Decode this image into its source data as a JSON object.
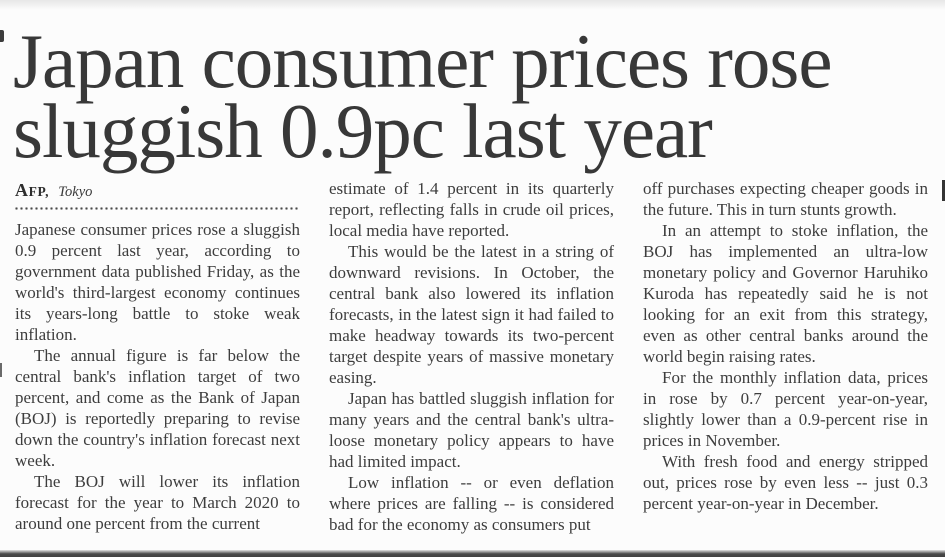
{
  "headline": {
    "line1": "Japan consumer prices rose",
    "line2": "sluggish 0.9pc last year"
  },
  "byline": {
    "agency": "AFP,",
    "location": "Tokyo"
  },
  "article": {
    "columns": [
      {
        "paragraphs": [
          {
            "indent": false,
            "text": "Japanese consumer prices rose a sluggish 0.9 percent last year, according to government data published Friday, as the world's third-largest economy continues its years-long battle to stoke weak inflation."
          },
          {
            "indent": true,
            "text": "The annual figure is far below the central bank's inflation target of two percent, and come as the Bank of Japan (BOJ) is reportedly preparing to revise down the country's inflation forecast next week."
          },
          {
            "indent": true,
            "text": "The BOJ will lower its inflation forecast for the year to March 2020 to around one percent from the current"
          }
        ]
      },
      {
        "paragraphs": [
          {
            "indent": false,
            "text": "estimate of 1.4 percent in its quarterly report, reflecting falls in crude oil prices, local media have reported."
          },
          {
            "indent": true,
            "text": "This would be the latest in a string of downward revisions. In October, the central bank also lowered its inflation forecasts, in the latest sign it had failed to make headway towards its two-percent target despite years of massive monetary easing."
          },
          {
            "indent": true,
            "text": "Japan has battled sluggish inflation for many years and the central bank's ultra-loose monetary policy appears to have had limited impact."
          },
          {
            "indent": true,
            "text": "Low inflation -- or even deflation where prices are falling -- is considered bad for the economy as consumers put"
          }
        ]
      },
      {
        "paragraphs": [
          {
            "indent": false,
            "text": "off purchases expecting cheaper goods in the future. This in turn stunts growth."
          },
          {
            "indent": true,
            "text": "In an attempt to stoke inflation, the BOJ has implemented an ultra-low monetary policy and Governor Haruhiko Kuroda has repeatedly said he is not looking for an exit from this strategy, even as other central banks around the world begin raising rates."
          },
          {
            "indent": true,
            "text": "For the monthly inflation data, prices in rose by 0.7 percent year-on-year, slightly lower than a 0.9-percent rise in prices in November."
          },
          {
            "indent": true,
            "text": "With fresh food and energy stripped out, prices rose by even less -- just 0.3 percent year-on-year in December."
          }
        ]
      }
    ]
  },
  "colors": {
    "paper": "#fcfcfc",
    "ink": "#3d3d3d",
    "headline_ink": "#383838"
  }
}
